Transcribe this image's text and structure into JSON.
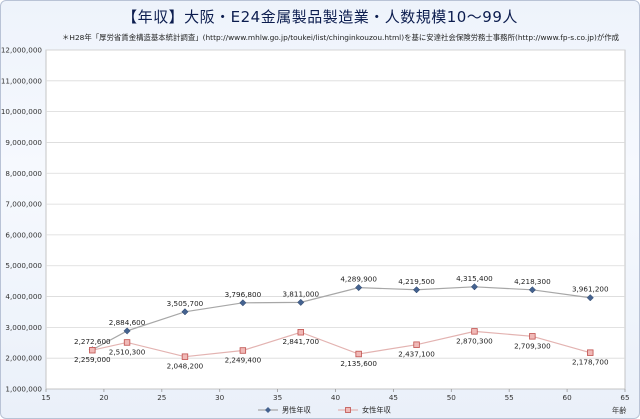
{
  "chart_data": {
    "type": "line",
    "title": "【年収】大阪・E24金属製品製造業・人数規模10～99人",
    "subtitle": "＊H28年「厚労省賃金構造基本統計調査」(http://www.mhlw.go.jp/toukei/list/chinginkouzou.html)を基に安達社会保険労務士事務所(http://www.fp-s.co.jp)が作成",
    "xlabel": "年齢",
    "ylabel": "",
    "xlim": [
      15,
      65
    ],
    "ylim": [
      1000000,
      12000000
    ],
    "xticks": [
      "15",
      "20",
      "25",
      "30",
      "35",
      "40",
      "45",
      "50",
      "55",
      "60",
      "65"
    ],
    "yticks": [
      "1,000,000",
      "2,000,000",
      "3,000,000",
      "4,000,000",
      "5,000,000",
      "6,000,000",
      "7,000,000",
      "8,000,000",
      "9,000,000",
      "10,000,000",
      "11,000,000",
      "12,000,000"
    ],
    "legend_position": "bottom",
    "series": [
      {
        "name": "男性年収",
        "color": "#44628f",
        "marker": "diamond",
        "x": [
          19,
          22,
          27,
          32,
          37,
          42,
          47,
          52,
          57,
          62
        ],
        "values": [
          2272600,
          2884600,
          3505700,
          3796800,
          3811000,
          4289900,
          4219500,
          4315400,
          4218300,
          3961200
        ],
        "labels": [
          "2,272,600",
          "2,884,600",
          "3,505,700",
          "3,796,800",
          "3,811,000",
          "4,289,900",
          "4,219,500",
          "4,315,400",
          "4,218,300",
          "3,961,200"
        ]
      },
      {
        "name": "女性年収",
        "color": "#c0504d",
        "marker": "square",
        "x": [
          19,
          22,
          27,
          32,
          37,
          42,
          47,
          52,
          57,
          62
        ],
        "values": [
          2259000,
          2510300,
          2048200,
          2249400,
          2841700,
          2135600,
          2437100,
          2870300,
          2709300,
          2178700
        ],
        "labels": [
          "2,259,000",
          "2,510,300",
          "2,048,200",
          "2,249,400",
          "2,841,700",
          "2,135,600",
          "2,437,100",
          "2,870,300",
          "2,709,300",
          "2,178,700"
        ]
      }
    ]
  }
}
